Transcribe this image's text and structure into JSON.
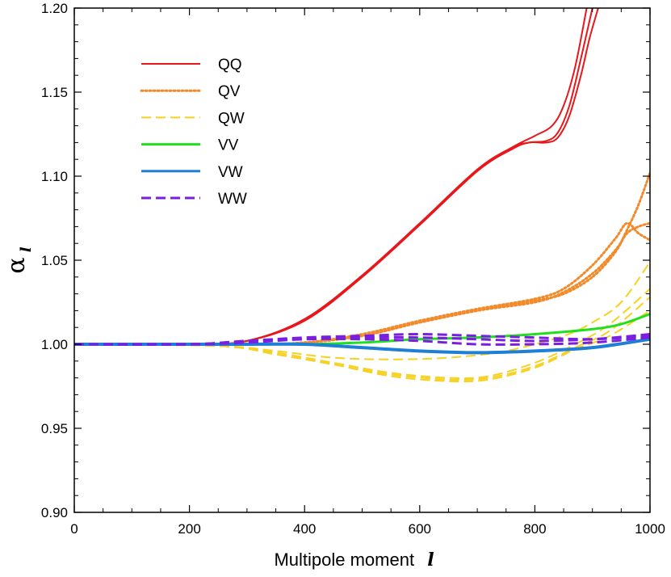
{
  "chart_data": {
    "type": "line",
    "title": "",
    "xlabel": "Multipole moment",
    "xlabel_symbol": "l",
    "ylabel_symbol": "α",
    "ylabel_subscript": "l",
    "xlim": [
      0,
      1000
    ],
    "ylim": [
      0.9,
      1.2
    ],
    "xticks": [
      "0",
      "200",
      "400",
      "600",
      "800",
      "1000"
    ],
    "yticks": [
      "0.90",
      "0.95",
      "1.00",
      "1.05",
      "1.10",
      "1.15",
      "1.20"
    ],
    "grid": false,
    "legend_position": "top-left",
    "series": [
      {
        "name": "QQ",
        "color": "#e8171b",
        "style": "solid",
        "width": 2,
        "curves": [
          [
            [
              0,
              1.0
            ],
            [
              200,
              1.0
            ],
            [
              300,
              1.002
            ],
            [
              400,
              1.014
            ],
            [
              500,
              1.04
            ],
            [
              600,
              1.071
            ],
            [
              700,
              1.103
            ],
            [
              760,
              1.117
            ],
            [
              800,
              1.124
            ],
            [
              830,
              1.13
            ],
            [
              850,
              1.142
            ],
            [
              870,
              1.165
            ],
            [
              890,
              1.2
            ]
          ],
          [
            [
              0,
              1.0
            ],
            [
              200,
              1.0
            ],
            [
              300,
              1.002
            ],
            [
              400,
              1.015
            ],
            [
              500,
              1.041
            ],
            [
              600,
              1.072
            ],
            [
              700,
              1.104
            ],
            [
              760,
              1.117
            ],
            [
              790,
              1.12
            ],
            [
              820,
              1.121
            ],
            [
              840,
              1.126
            ],
            [
              860,
              1.142
            ],
            [
              880,
              1.17
            ],
            [
              900,
              1.2
            ]
          ],
          [
            [
              0,
              1.0
            ],
            [
              200,
              1.0
            ],
            [
              300,
              1.002
            ],
            [
              400,
              1.014
            ],
            [
              500,
              1.04
            ],
            [
              600,
              1.071
            ],
            [
              700,
              1.103
            ],
            [
              760,
              1.116
            ],
            [
              790,
              1.12
            ],
            [
              820,
              1.12
            ],
            [
              840,
              1.123
            ],
            [
              860,
              1.136
            ],
            [
              880,
              1.16
            ],
            [
              895,
              1.182
            ],
            [
              910,
              1.2
            ]
          ]
        ]
      },
      {
        "name": "QV",
        "color": "#f28a2a",
        "style": "dotted",
        "width": 3,
        "curves": [
          [
            [
              0,
              1.0
            ],
            [
              300,
              1.0
            ],
            [
              400,
              1.001
            ],
            [
              500,
              1.006
            ],
            [
              600,
              1.014
            ],
            [
              700,
              1.021
            ],
            [
              800,
              1.027
            ],
            [
              850,
              1.033
            ],
            [
              900,
              1.047
            ],
            [
              940,
              1.063
            ],
            [
              960,
              1.072
            ],
            [
              980,
              1.066
            ],
            [
              1000,
              1.062
            ]
          ],
          [
            [
              0,
              1.0
            ],
            [
              300,
              1.0
            ],
            [
              400,
              1.001
            ],
            [
              500,
              1.005
            ],
            [
              600,
              1.013
            ],
            [
              700,
              1.02
            ],
            [
              800,
              1.026
            ],
            [
              850,
              1.03
            ],
            [
              900,
              1.04
            ],
            [
              940,
              1.055
            ],
            [
              960,
              1.068
            ],
            [
              980,
              1.083
            ],
            [
              1000,
              1.102
            ]
          ],
          [
            [
              0,
              1.0
            ],
            [
              300,
              1.0
            ],
            [
              400,
              1.001
            ],
            [
              500,
              1.005
            ],
            [
              600,
              1.013
            ],
            [
              700,
              1.02
            ],
            [
              800,
              1.025
            ],
            [
              850,
              1.031
            ],
            [
              900,
              1.042
            ],
            [
              940,
              1.056
            ],
            [
              960,
              1.066
            ],
            [
              980,
              1.07
            ],
            [
              1000,
              1.072
            ]
          ]
        ]
      },
      {
        "name": "QW",
        "color": "#f7d11f",
        "style": "dashed",
        "width": 2,
        "curves": [
          [
            [
              0,
              1.0
            ],
            [
              250,
              0.999
            ],
            [
              350,
              0.996
            ],
            [
              450,
              0.992
            ],
            [
              550,
              0.991
            ],
            [
              650,
              0.992
            ],
            [
              750,
              0.996
            ],
            [
              850,
              1.005
            ],
            [
              900,
              1.013
            ],
            [
              950,
              1.025
            ],
            [
              1000,
              1.049
            ]
          ],
          [
            [
              0,
              1.0
            ],
            [
              250,
              0.999
            ],
            [
              350,
              0.995
            ],
            [
              450,
              0.989
            ],
            [
              550,
              0.983
            ],
            [
              650,
              0.98
            ],
            [
              720,
              0.981
            ],
            [
              800,
              0.989
            ],
            [
              870,
              1.0
            ],
            [
              930,
              1.012
            ],
            [
              1000,
              1.033
            ]
          ],
          [
            [
              0,
              1.0
            ],
            [
              250,
              0.999
            ],
            [
              350,
              0.994
            ],
            [
              450,
              0.988
            ],
            [
              550,
              0.982
            ],
            [
              650,
              0.979
            ],
            [
              720,
              0.98
            ],
            [
              800,
              0.987
            ],
            [
              870,
              0.998
            ],
            [
              930,
              1.008
            ],
            [
              1000,
              1.028
            ]
          ],
          [
            [
              0,
              1.0
            ],
            [
              250,
              0.999
            ],
            [
              350,
              0.994
            ],
            [
              450,
              0.988
            ],
            [
              550,
              0.981
            ],
            [
              650,
              0.978
            ],
            [
              720,
              0.979
            ],
            [
              800,
              0.986
            ],
            [
              870,
              0.997
            ],
            [
              930,
              1.005
            ],
            [
              1000,
              1.02
            ]
          ]
        ]
      },
      {
        "name": "VV",
        "color": "#1fe01f",
        "style": "solid",
        "width": 3,
        "curves": [
          [
            [
              0,
              1.0
            ],
            [
              300,
              1.0
            ],
            [
              400,
              1.0
            ],
            [
              500,
              1.001
            ],
            [
              600,
              1.003
            ],
            [
              700,
              1.004
            ],
            [
              800,
              1.006
            ],
            [
              900,
              1.009
            ],
            [
              950,
              1.012
            ],
            [
              1000,
              1.018
            ]
          ]
        ]
      },
      {
        "name": "VW",
        "color": "#1f7fd6",
        "style": "solid",
        "width": 4,
        "curves": [
          [
            [
              0,
              1.0
            ],
            [
              300,
              1.0
            ],
            [
              400,
              1.0
            ],
            [
              500,
              0.998
            ],
            [
              600,
              0.996
            ],
            [
              700,
              0.995
            ],
            [
              800,
              0.996
            ],
            [
              900,
              0.998
            ],
            [
              1000,
              1.003
            ]
          ]
        ]
      },
      {
        "name": "WW",
        "color": "#7a1fe0",
        "style": "dashed",
        "width": 3,
        "curves": [
          [
            [
              0,
              1.0
            ],
            [
              200,
              1.0
            ],
            [
              300,
              1.002
            ],
            [
              400,
              1.004
            ],
            [
              500,
              1.005
            ],
            [
              600,
              1.006
            ],
            [
              700,
              1.005
            ],
            [
              800,
              1.004
            ],
            [
              900,
              1.003
            ],
            [
              1000,
              1.005
            ]
          ],
          [
            [
              0,
              1.0
            ],
            [
              200,
              1.0
            ],
            [
              300,
              1.001
            ],
            [
              400,
              1.003
            ],
            [
              500,
              1.003
            ],
            [
              600,
              1.002
            ],
            [
              700,
              1.0
            ],
            [
              800,
              1.0
            ],
            [
              900,
              1.001
            ],
            [
              1000,
              1.004
            ]
          ],
          [
            [
              0,
              1.0
            ],
            [
              200,
              1.0
            ],
            [
              300,
              1.002
            ],
            [
              400,
              1.003
            ],
            [
              500,
              1.004
            ],
            [
              600,
              1.004
            ],
            [
              700,
              1.003
            ],
            [
              800,
              1.002
            ],
            [
              900,
              1.003
            ],
            [
              1000,
              1.006
            ]
          ]
        ]
      }
    ]
  }
}
